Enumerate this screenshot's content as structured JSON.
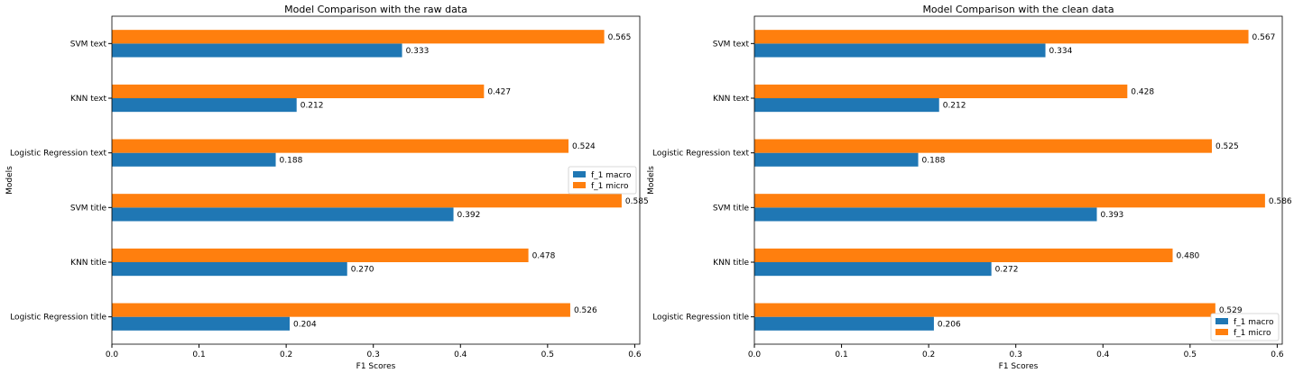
{
  "chart_data": [
    {
      "type": "bar",
      "orientation": "horizontal",
      "title": "Model Comparison with the raw data",
      "xlabel": "F1 Scores",
      "ylabel": "Models",
      "xlim": [
        0,
        0.6
      ],
      "xticks": [
        "0.0",
        "0.1",
        "0.2",
        "0.3",
        "0.4",
        "0.5",
        "0.6"
      ],
      "categories": [
        "Logistic Regression title",
        "KNN title",
        "SVM title",
        "Logistic Regression text",
        "KNN text",
        "SVM text"
      ],
      "series": [
        {
          "name": "f_1 macro",
          "color": "#1f77b4",
          "values": [
            0.204,
            0.27,
            0.392,
            0.188,
            0.212,
            0.333
          ],
          "labels": [
            "0.204",
            "0.270",
            "0.392",
            "0.188",
            "0.212",
            "0.333"
          ]
        },
        {
          "name": "f_1 micro",
          "color": "#ff7f0e",
          "values": [
            0.526,
            0.478,
            0.585,
            0.524,
            0.427,
            0.565
          ],
          "labels": [
            "0.526",
            "0.478",
            "0.585",
            "0.524",
            "0.427",
            "0.565"
          ]
        }
      ],
      "legend_position": "center-right",
      "grid": false
    },
    {
      "type": "bar",
      "orientation": "horizontal",
      "title": "Model Comparison with the clean data",
      "xlabel": "F1 Scores",
      "ylabel": "Models",
      "xlim": [
        0,
        0.6
      ],
      "xticks": [
        "0.0",
        "0.1",
        "0.2",
        "0.3",
        "0.4",
        "0.5",
        "0.6"
      ],
      "categories": [
        "Logistic Regression title",
        "KNN title",
        "SVM title",
        "Logistic Regression text",
        "KNN text",
        "SVM text"
      ],
      "series": [
        {
          "name": "f_1 macro",
          "color": "#1f77b4",
          "values": [
            0.206,
            0.272,
            0.393,
            0.188,
            0.212,
            0.334
          ],
          "labels": [
            "0.206",
            "0.272",
            "0.393",
            "0.188",
            "0.212",
            "0.334"
          ]
        },
        {
          "name": "f_1 micro",
          "color": "#ff7f0e",
          "values": [
            0.529,
            0.48,
            0.586,
            0.525,
            0.428,
            0.567
          ],
          "labels": [
            "0.529",
            "0.480",
            "0.586",
            "0.525",
            "0.428",
            "0.567"
          ]
        }
      ],
      "legend_position": "lower-right",
      "grid": false
    }
  ]
}
